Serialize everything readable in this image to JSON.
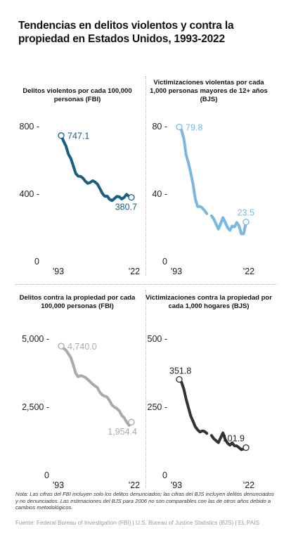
{
  "title": "Tendencias en delitos violentos y contra la propiedad en Estados Unidos, 1993-2022",
  "note": "Nota: Las cifras del FBI incluyen solo los delitos denunciados; las cifras del BJS incluyen delitos denunciados y no denunciados. Las estimaciones del BJS para 2006 no son comparables con las de otros años debido a cambios metodológicos.",
  "source": "Fuente: Federal Bureau of Investigation (FBI) | U.S. Bureau of Justice Statistics (BJS) | EL PAÍS",
  "chart_data": [
    {
      "type": "line",
      "title": "Delitos violentos por cada 100,000 personas (FBI)",
      "color": "#17607f",
      "x": [
        1993,
        1994,
        1995,
        1996,
        1997,
        1998,
        1999,
        2000,
        2001,
        2002,
        2003,
        2004,
        2005,
        2006,
        2007,
        2008,
        2009,
        2010,
        2011,
        2012,
        2013,
        2014,
        2015,
        2016,
        2017,
        2018,
        2019,
        2020,
        2021,
        2022
      ],
      "values": [
        747.1,
        713.6,
        684.5,
        636.6,
        611.0,
        567.6,
        523.0,
        506.5,
        504.5,
        494.4,
        475.8,
        463.2,
        469.0,
        479.3,
        471.8,
        458.6,
        431.9,
        404.5,
        387.1,
        387.8,
        369.1,
        361.6,
        373.7,
        386.3,
        383.8,
        370.8,
        380.8,
        398.5,
        387.0,
        380.7
      ],
      "ylim": [
        0,
        800
      ],
      "yticks": [
        "0",
        "400 -",
        "800 -"
      ],
      "ytick_values": [
        0,
        400,
        800
      ],
      "xticks": [
        "'93",
        "'22"
      ],
      "start_label": "747.1",
      "end_label": "380.7"
    },
    {
      "type": "line",
      "title": "Victimizaciones violentas por cada 1,000 personas mayores de 12+ años (BJS)",
      "color": "#7ab8e2",
      "x": [
        1993,
        1994,
        1995,
        1996,
        1997,
        1998,
        1999,
        2000,
        2001,
        2002,
        2003,
        2004,
        2005,
        2006,
        2007,
        2008,
        2009,
        2010,
        2011,
        2012,
        2013,
        2014,
        2015,
        2016,
        2017,
        2018,
        2019,
        2020,
        2021,
        2022
      ],
      "values": [
        79.8,
        77.9,
        72.7,
        63.2,
        58.5,
        52.5,
        45.7,
        37.1,
        32.6,
        32.7,
        31.8,
        30.3,
        28.4,
        null,
        27.1,
        25.3,
        22.3,
        19.3,
        22.6,
        26.1,
        23.2,
        20.1,
        18.6,
        21.1,
        20.6,
        23.2,
        21.0,
        16.4,
        16.5,
        23.5
      ],
      "ylim": [
        0,
        80
      ],
      "yticks": [
        "0",
        "40 -",
        "80 -"
      ],
      "ytick_values": [
        0,
        40,
        80
      ],
      "xticks": [
        "'93",
        "'22"
      ],
      "start_label": "79.8",
      "end_label": "23.5"
    },
    {
      "type": "line",
      "title": "Delitos contra la propiedad por cada 100,000 personas (FBI)",
      "color": "#aaaaaa",
      "x": [
        1993,
        1994,
        1995,
        1996,
        1997,
        1998,
        1999,
        2000,
        2001,
        2002,
        2003,
        2004,
        2005,
        2006,
        2007,
        2008,
        2009,
        2010,
        2011,
        2012,
        2013,
        2014,
        2015,
        2016,
        2017,
        2018,
        2019,
        2020,
        2021,
        2022
      ],
      "values": [
        4740.0,
        4660.2,
        4590.5,
        4451.0,
        4316.3,
        4052.5,
        3743.6,
        3618.3,
        3658.1,
        3630.6,
        3591.2,
        3514.1,
        3431.5,
        3346.6,
        3276.4,
        3214.6,
        3041.3,
        2945.9,
        2905.4,
        2868.0,
        2733.6,
        2574.1,
        2500.5,
        2451.6,
        2362.9,
        2199.5,
        2109.9,
        1958.2,
        1832.3,
        1954.4
      ],
      "ylim": [
        0,
        5000
      ],
      "yticks": [
        "0",
        "2,500 -",
        "5,000 -"
      ],
      "ytick_values": [
        0,
        2500,
        5000
      ],
      "xticks": [
        "'93",
        "'22"
      ],
      "start_label": "4,740.0",
      "end_label": "1,954.4"
    },
    {
      "type": "line",
      "title": "Victimizaciones contra la propiedad por cada 1,000 hogares (BJS)",
      "color": "#333333",
      "x": [
        1993,
        1994,
        1995,
        1996,
        1997,
        1998,
        1999,
        2000,
        2001,
        2002,
        2003,
        2004,
        2005,
        2006,
        2007,
        2008,
        2009,
        2010,
        2011,
        2012,
        2013,
        2014,
        2015,
        2016,
        2017,
        2018,
        2019,
        2020,
        2021,
        2022
      ],
      "values": [
        351.8,
        341.2,
        315.9,
        279.5,
        248.3,
        217.4,
        198.0,
        178.1,
        166.9,
        159.0,
        163.2,
        161.1,
        154.0,
        null,
        146.5,
        134.7,
        127.4,
        120.2,
        138.7,
        155.8,
        131.4,
        118.1,
        110.7,
        119.4,
        108.4,
        108.2,
        101.4,
        94.5,
        97.4,
        101.9
      ],
      "ylim": [
        0,
        500
      ],
      "yticks": [
        "0",
        "250 -",
        "500 -"
      ],
      "ytick_values": [
        0,
        250,
        500
      ],
      "xticks": [
        "'93",
        "'22"
      ],
      "start_label": "351.8",
      "end_label": "101.9"
    }
  ]
}
